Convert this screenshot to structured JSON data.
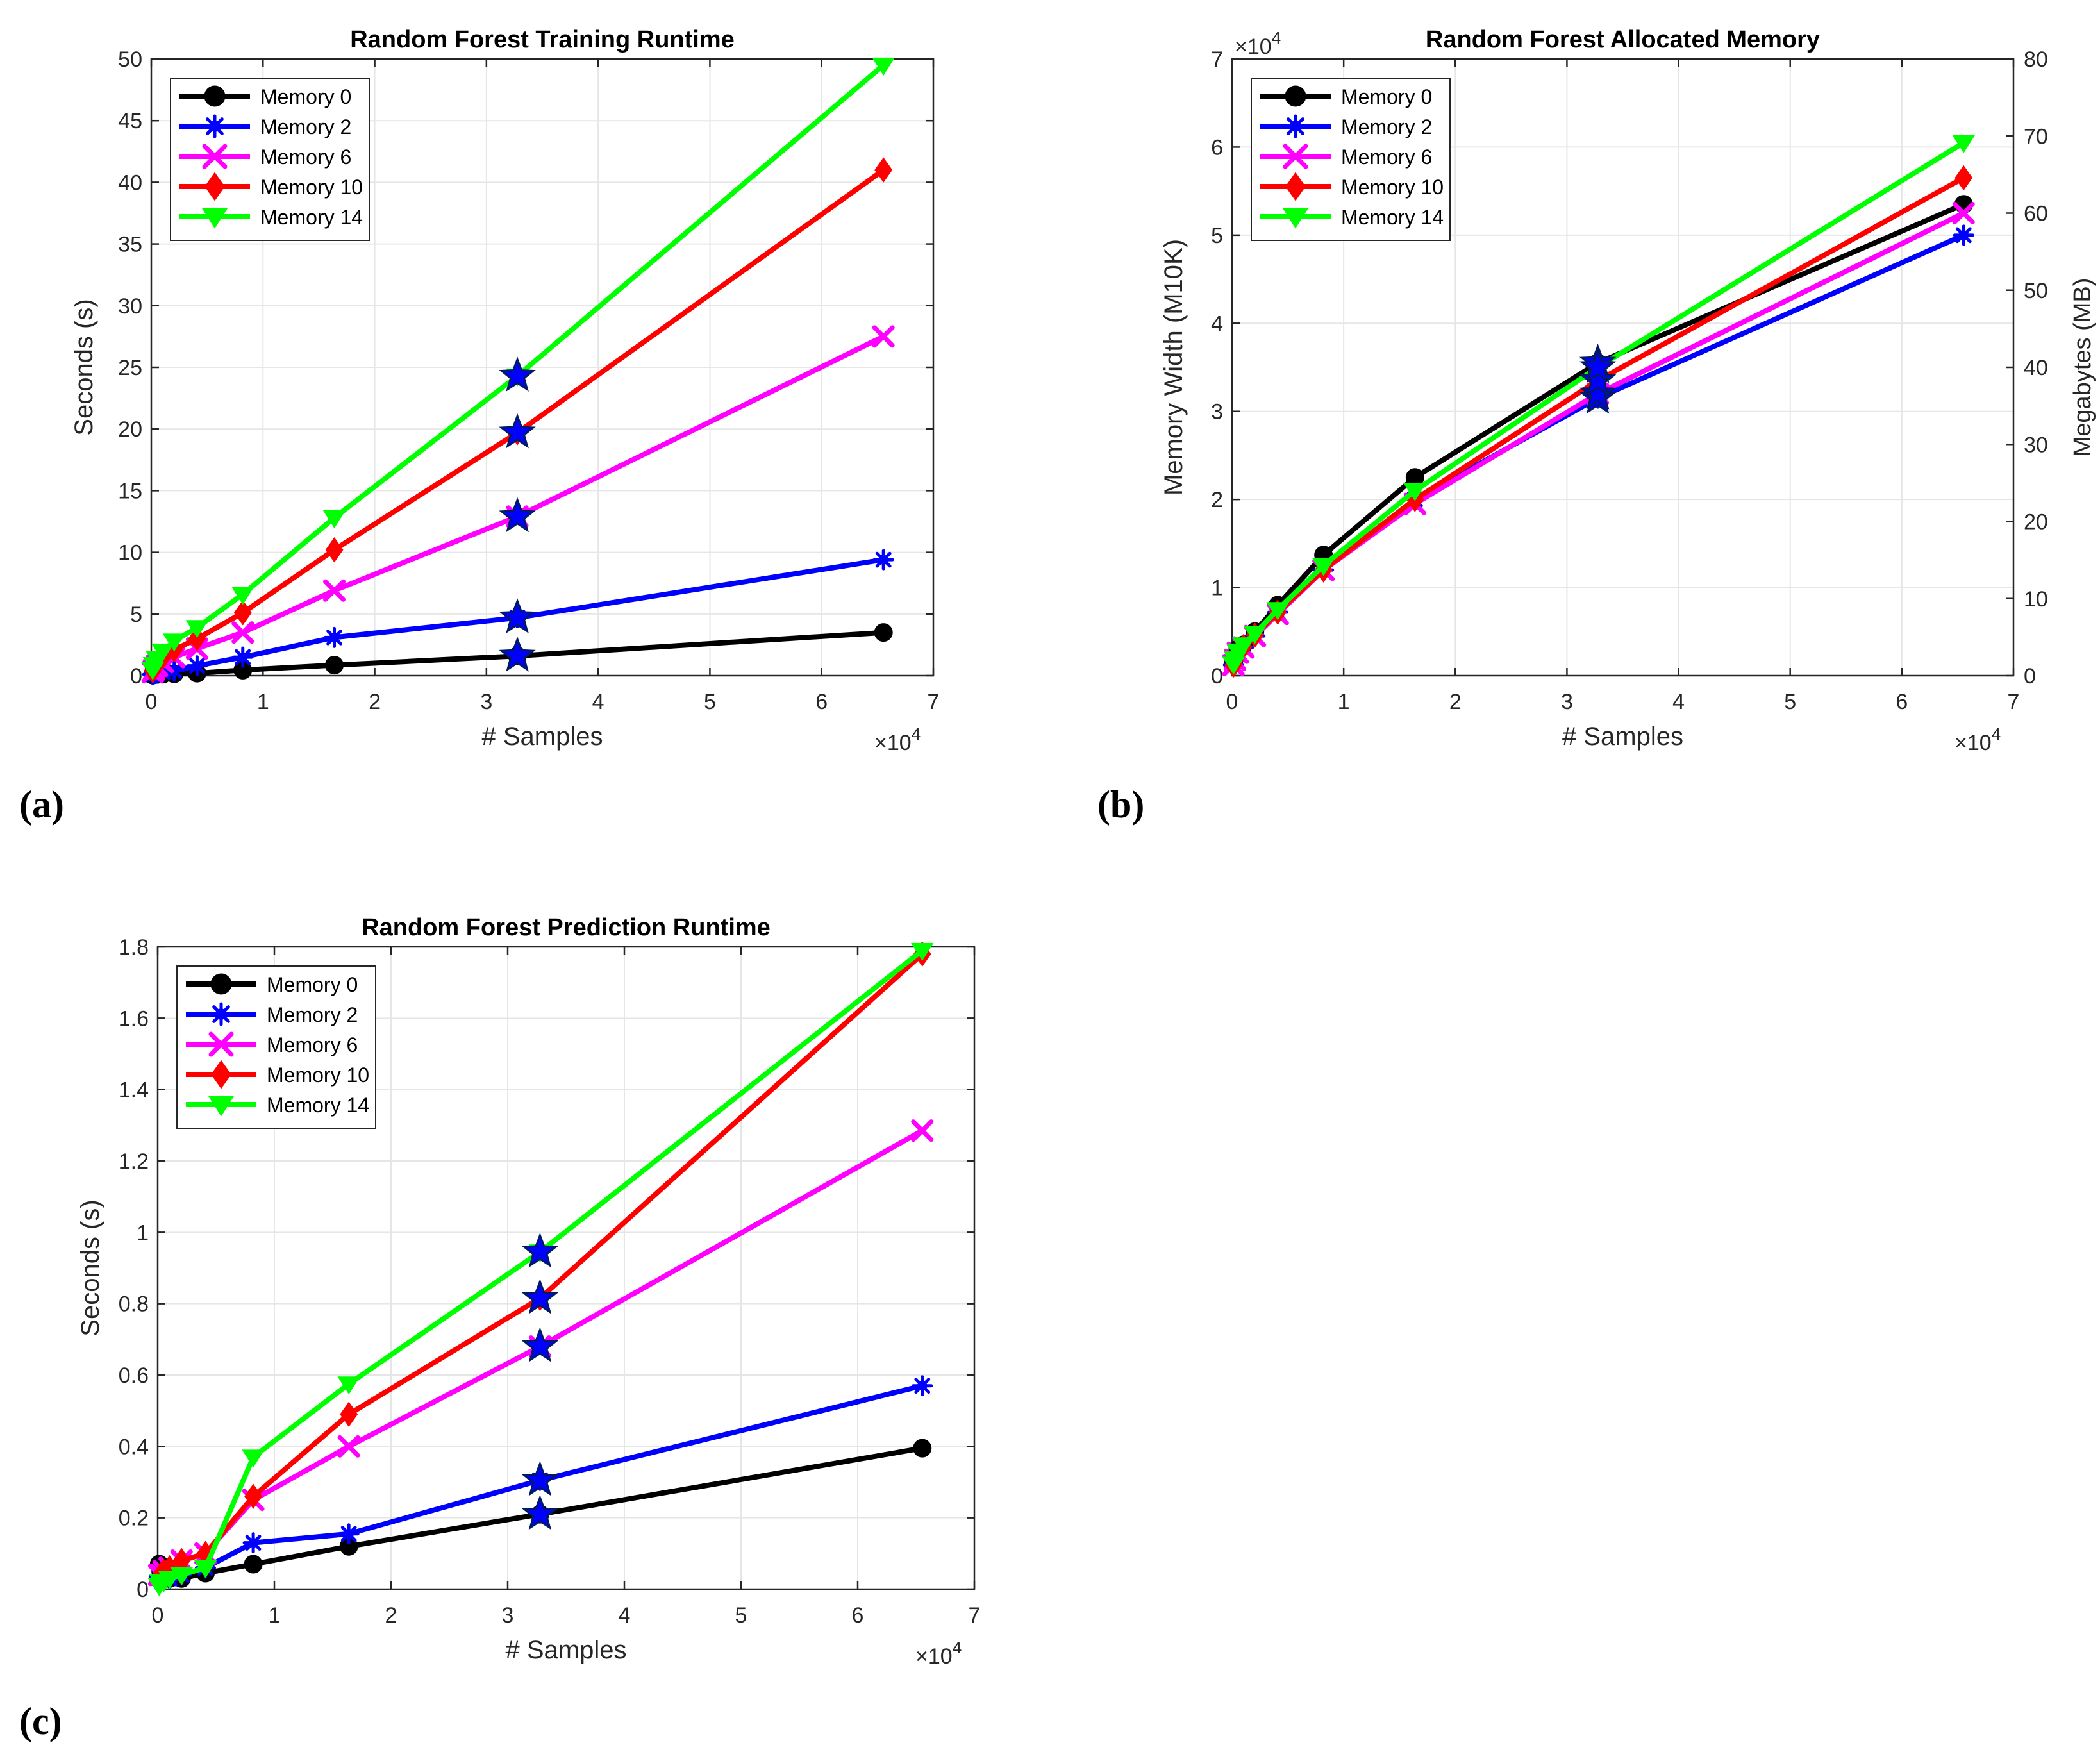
{
  "colors": {
    "memory0": "#000000",
    "memory2": "#0000ff",
    "memory6": "#ff00ff",
    "memory10": "#ff0000",
    "memory14": "#00ff00",
    "star": "#0000ff",
    "grid": "#e6e6e6",
    "axis": "#262626"
  },
  "chart_data": [
    {
      "panel": "(a)",
      "type": "line",
      "title": "Random Forest Training Runtime",
      "xlabel": "# Samples",
      "ylabel": "Seconds (s)",
      "x_exponent": "×10",
      "x_exponent_power": "4",
      "xlim": [
        0,
        7
      ],
      "ylim": [
        0,
        50
      ],
      "xticks": [
        "0",
        "1",
        "2",
        "3",
        "4",
        "5",
        "6",
        "7"
      ],
      "yticks": [
        "0",
        "5",
        "10",
        "15",
        "20",
        "25",
        "30",
        "35",
        "40",
        "45",
        "50"
      ],
      "grid": true,
      "legend_position": "top-left",
      "x": [
        0.0128,
        0.0256,
        0.0512,
        0.1024,
        0.2048,
        0.4096,
        0.8192,
        1.6384,
        3.2768,
        6.5536
      ],
      "series": [
        {
          "name": "Memory 0",
          "marker": "circle",
          "values": [
            0.05,
            0.08,
            0.1,
            0.12,
            0.15,
            0.2,
            0.45,
            0.85,
            1.6,
            3.5
          ]
        },
        {
          "name": "Memory 2",
          "marker": "asterisk",
          "values": [
            0.1,
            0.15,
            0.2,
            0.3,
            0.4,
            0.8,
            1.5,
            3.1,
            4.7,
            9.4
          ]
        },
        {
          "name": "Memory 6",
          "marker": "x",
          "values": [
            0.3,
            0.5,
            0.8,
            1.1,
            1.5,
            2.2,
            3.5,
            6.9,
            12.9,
            27.5
          ]
        },
        {
          "name": "Memory 10",
          "marker": "diamond",
          "values": [
            0.4,
            0.7,
            1.1,
            1.5,
            2.1,
            3.0,
            5.1,
            10.2,
            19.7,
            41.0
          ]
        },
        {
          "name": "Memory 14",
          "marker": "triangle-down",
          "values": [
            0.5,
            0.9,
            1.4,
            2.0,
            2.8,
            3.9,
            6.6,
            12.8,
            24.3,
            49.5
          ]
        }
      ],
      "stars": [
        {
          "x": 3.2768,
          "y": 1.6
        },
        {
          "x": 3.2768,
          "y": 4.7
        },
        {
          "x": 3.2768,
          "y": 12.9
        },
        {
          "x": 3.2768,
          "y": 19.7
        },
        {
          "x": 3.2768,
          "y": 24.3
        }
      ]
    },
    {
      "panel": "(b)",
      "type": "line",
      "title": "Random Forest Allocated Memory",
      "xlabel": "# Samples",
      "ylabel": "Memory Width (M10K)",
      "ylabel_right": "Megabytes (MB)",
      "x_exponent": "×10",
      "x_exponent_power": "4",
      "y_exponent": "×10",
      "y_exponent_power": "4",
      "xlim": [
        0,
        7
      ],
      "ylim": [
        0,
        7
      ],
      "ylim_right": [
        0,
        80
      ],
      "xticks": [
        "0",
        "1",
        "2",
        "3",
        "4",
        "5",
        "6",
        "7"
      ],
      "yticks": [
        "0",
        "1",
        "2",
        "3",
        "4",
        "5",
        "6",
        "7"
      ],
      "yticks_right": [
        "0",
        "10",
        "20",
        "30",
        "40",
        "50",
        "60",
        "70",
        "80"
      ],
      "grid": true,
      "legend_position": "top-left",
      "x": [
        0.0128,
        0.0256,
        0.0512,
        0.1024,
        0.2048,
        0.4096,
        0.8192,
        1.6384,
        3.2768,
        6.5536
      ],
      "series": [
        {
          "name": "Memory 0",
          "marker": "circle",
          "values": [
            0.15,
            0.2,
            0.3,
            0.35,
            0.5,
            0.8,
            1.37,
            2.25,
            3.55,
            5.35
          ]
        },
        {
          "name": "Memory 2",
          "marker": "asterisk",
          "values": [
            0.12,
            0.18,
            0.26,
            0.32,
            0.45,
            0.72,
            1.2,
            2.0,
            3.15,
            5.0
          ]
        },
        {
          "name": "Memory 6",
          "marker": "x",
          "values": [
            0.12,
            0.18,
            0.26,
            0.32,
            0.45,
            0.7,
            1.2,
            1.95,
            3.2,
            5.25
          ]
        },
        {
          "name": "Memory 10",
          "marker": "diamond",
          "values": [
            0.12,
            0.18,
            0.26,
            0.33,
            0.46,
            0.72,
            1.2,
            2.0,
            3.35,
            5.65
          ]
        },
        {
          "name": "Memory 14",
          "marker": "triangle-down",
          "values": [
            0.13,
            0.19,
            0.28,
            0.35,
            0.48,
            0.75,
            1.25,
            2.1,
            3.5,
            6.05
          ]
        }
      ],
      "stars": [
        {
          "x": 3.2768,
          "y": 3.55
        },
        {
          "x": 3.2768,
          "y": 3.15
        },
        {
          "x": 3.2768,
          "y": 3.2
        },
        {
          "x": 3.2768,
          "y": 3.35
        },
        {
          "x": 3.2768,
          "y": 3.5
        }
      ]
    },
    {
      "panel": "(c)",
      "type": "line",
      "title": "Random Forest Prediction Runtime",
      "xlabel": "# Samples",
      "ylabel": "Seconds (s)",
      "x_exponent": "×10",
      "x_exponent_power": "4",
      "xlim": [
        0,
        7
      ],
      "ylim": [
        0,
        1.8
      ],
      "xticks": [
        "0",
        "1",
        "2",
        "3",
        "4",
        "5",
        "6",
        "7"
      ],
      "yticks": [
        "0",
        "0.2",
        "0.4",
        "0.6",
        "0.8",
        "1",
        "1.2",
        "1.4",
        "1.6",
        "1.8"
      ],
      "grid": true,
      "legend_position": "top-left",
      "x": [
        0.0128,
        0.0256,
        0.0512,
        0.1024,
        0.2048,
        0.4096,
        0.8192,
        1.6384,
        3.2768,
        6.5536
      ],
      "series": [
        {
          "name": "Memory 0",
          "marker": "circle",
          "values": [
            0.07,
            0.05,
            0.04,
            0.03,
            0.03,
            0.045,
            0.07,
            0.12,
            0.21,
            0.395
          ]
        },
        {
          "name": "Memory 2",
          "marker": "asterisk",
          "values": [
            0.035,
            0.03,
            0.03,
            0.03,
            0.04,
            0.06,
            0.13,
            0.155,
            0.305,
            0.57
          ]
        },
        {
          "name": "Memory 6",
          "marker": "x",
          "values": [
            0.04,
            0.04,
            0.05,
            0.06,
            0.08,
            0.1,
            0.25,
            0.4,
            0.68,
            1.285
          ]
        },
        {
          "name": "Memory 10",
          "marker": "diamond",
          "values": [
            0.03,
            0.04,
            0.05,
            0.06,
            0.08,
            0.1,
            0.26,
            0.49,
            0.815,
            1.78
          ]
        },
        {
          "name": "Memory 14",
          "marker": "triangle-down",
          "values": [
            0.01,
            0.02,
            0.02,
            0.03,
            0.04,
            0.06,
            0.37,
            0.575,
            0.945,
            1.79
          ]
        }
      ],
      "stars": [
        {
          "x": 3.2768,
          "y": 0.21
        },
        {
          "x": 3.2768,
          "y": 0.305
        },
        {
          "x": 3.2768,
          "y": 0.68
        },
        {
          "x": 3.2768,
          "y": 0.815
        },
        {
          "x": 3.2768,
          "y": 0.945
        }
      ]
    }
  ]
}
